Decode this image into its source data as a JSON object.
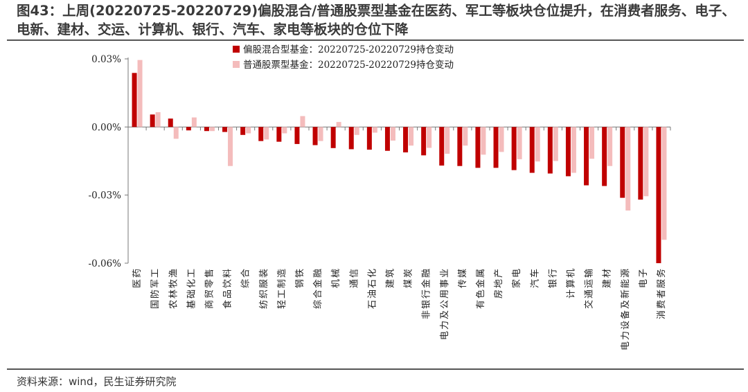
{
  "title": "图43：上周(20220725-20220729)偏股混合/普通股票型基金在医药、军工等板块仓位提升，在消费者服务、电子、电新、建材、交运、计算机、银行、汽车、家电等板块的仓位下降",
  "source": "资料来源：wind，民生证券研究院",
  "colors": {
    "series1": "#c00000",
    "series2": "#f4bcbc",
    "axis": "#777777"
  },
  "chart_data": {
    "type": "bar",
    "ylim": [
      -0.06,
      0.03
    ],
    "yticks": [
      0.03,
      0.0,
      -0.03,
      -0.06
    ],
    "ytick_labels": [
      "0.03%",
      "0.00%",
      "-0.03%",
      "-0.06%"
    ],
    "legend_position": "top",
    "grid": false,
    "categories": [
      "医药",
      "国防军工",
      "农林牧渔",
      "基础化工",
      "商贸零售",
      "食品饮料",
      "综合",
      "纺织服装",
      "轻工制造",
      "钢铁",
      "综合金融",
      "机械",
      "通信",
      "石油石化",
      "建筑",
      "煤炭",
      "非银行金融",
      "电力及公用事业",
      "传媒",
      "有色金属",
      "房地产",
      "家电",
      "汽车",
      "银行",
      "计算机",
      "交通运输",
      "建材",
      "电力设备及新能源",
      "电子",
      "消费者服务"
    ],
    "series": [
      {
        "name": "偏股混合型基金：20220725-20220729持仓变动",
        "values": [
          0.0238,
          0.0055,
          0.0037,
          -0.0015,
          -0.0018,
          -0.0022,
          -0.0035,
          -0.0062,
          -0.0065,
          -0.0075,
          -0.008,
          -0.0093,
          -0.0098,
          -0.01,
          -0.0105,
          -0.0112,
          -0.0125,
          -0.017,
          -0.0172,
          -0.018,
          -0.018,
          -0.019,
          -0.0202,
          -0.0205,
          -0.0217,
          -0.0257,
          -0.026,
          -0.0312,
          -0.032,
          -0.06
        ]
      },
      {
        "name": "普通股票型基金：20220725-20220729持仓变动",
        "values": [
          0.0295,
          0.0065,
          -0.0052,
          0.0042,
          -0.0018,
          -0.0172,
          -0.0028,
          -0.0055,
          -0.0028,
          0.0048,
          -0.0062,
          0.0022,
          -0.0035,
          -0.0025,
          -0.006,
          -0.0082,
          -0.0092,
          -0.0118,
          -0.0082,
          -0.0122,
          -0.011,
          -0.0142,
          -0.0152,
          -0.015,
          -0.0202,
          -0.014,
          -0.0172,
          -0.0368,
          -0.0305,
          -0.0497
        ]
      }
    ]
  }
}
